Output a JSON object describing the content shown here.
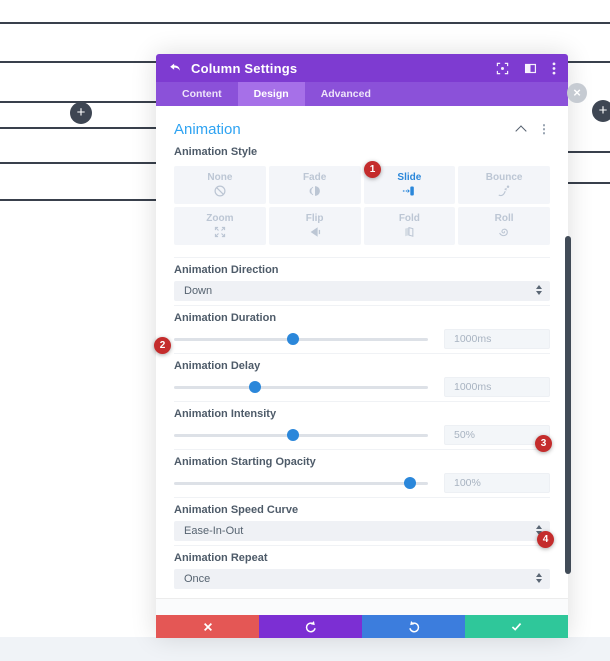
{
  "modal": {
    "title": "Column Settings",
    "tabs": [
      {
        "label": "Content",
        "active": false
      },
      {
        "label": "Design",
        "active": true
      },
      {
        "label": "Advanced",
        "active": false
      }
    ],
    "header_icons": [
      "focus-icon",
      "split-view-icon",
      "more-options-icon"
    ],
    "section": {
      "title": "Animation",
      "style_label": "Animation Style",
      "styles": [
        {
          "label": "None",
          "icon": "none-icon",
          "active": false
        },
        {
          "label": "Fade",
          "icon": "fade-icon",
          "active": false
        },
        {
          "label": "Slide",
          "icon": "slide-icon",
          "active": true
        },
        {
          "label": "Bounce",
          "icon": "bounce-icon",
          "active": false
        },
        {
          "label": "Zoom",
          "icon": "zoom-icon",
          "active": false
        },
        {
          "label": "Flip",
          "icon": "flip-icon",
          "active": false
        },
        {
          "label": "Fold",
          "icon": "fold-icon",
          "active": false
        },
        {
          "label": "Roll",
          "icon": "roll-icon",
          "active": false
        }
      ],
      "fields": [
        {
          "type": "select",
          "label": "Animation Direction",
          "value": "Down"
        },
        {
          "type": "slider",
          "label": "Animation Duration",
          "value": "1000ms",
          "percent": 47
        },
        {
          "type": "slider",
          "label": "Animation Delay",
          "value": "1000ms",
          "percent": 32
        },
        {
          "type": "slider",
          "label": "Animation Intensity",
          "value": "50%",
          "percent": 47
        },
        {
          "type": "slider",
          "label": "Animation Starting Opacity",
          "value": "100%",
          "percent": 93
        },
        {
          "type": "select",
          "label": "Animation Speed Curve",
          "value": "Ease-In-Out"
        },
        {
          "type": "select",
          "label": "Animation Repeat",
          "value": "Once"
        }
      ]
    },
    "badges": [
      {
        "label": "1"
      },
      {
        "label": "2"
      },
      {
        "label": "3"
      },
      {
        "label": "4"
      }
    ],
    "footer_buttons": [
      {
        "name": "discard",
        "icon": "x-icon"
      },
      {
        "name": "undo",
        "icon": "undo-icon"
      },
      {
        "name": "redo",
        "icon": "redo-icon"
      },
      {
        "name": "save",
        "icon": "check-icon"
      }
    ]
  },
  "canvas": {
    "icons": {
      "add": "+",
      "close": "×"
    }
  },
  "colors": {
    "header_purple": "#7E3BD1",
    "tabbar_purple": "#8B51D9",
    "active_tab_purple": "#A670E8",
    "accent_blue": "#2EA3F2",
    "slider_blue": "#2B87DA",
    "badge_red": "#C42C2C",
    "btn_red": "#E45755",
    "btn_purple": "#7C2FD3",
    "btn_blue": "#3C7DDD",
    "btn_green": "#2FC79A"
  }
}
